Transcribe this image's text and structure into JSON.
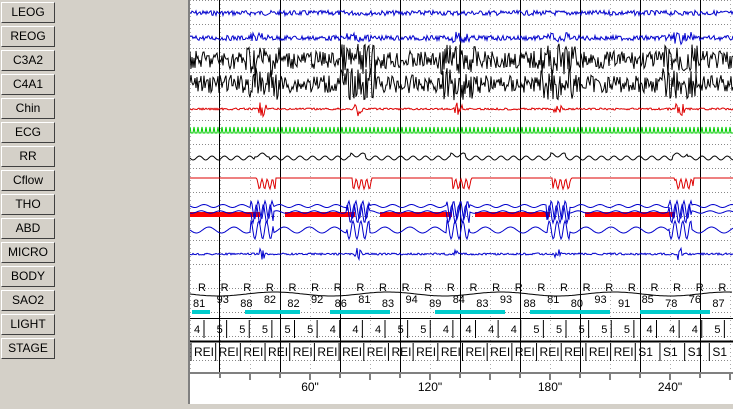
{
  "channels": [
    {
      "label": "LEOG",
      "color": "#0000cc"
    },
    {
      "label": "REOG",
      "color": "#0000cc"
    },
    {
      "label": "C3A2",
      "color": "#000000"
    },
    {
      "label": "C4A1",
      "color": "#000000"
    },
    {
      "label": "Chin",
      "color": "#dd0000"
    },
    {
      "label": "ECG",
      "color": "#00cc00"
    },
    {
      "label": "RR",
      "color": "#000000"
    },
    {
      "label": "Cflow",
      "color": "#dd0000"
    },
    {
      "label": "THO",
      "color": "#0000cc"
    },
    {
      "label": "ABD",
      "color": "#0000cc"
    },
    {
      "label": "MICRO",
      "color": "#0000cc"
    },
    {
      "label": "BODY",
      "color": "#000000"
    },
    {
      "label": "SAO2",
      "color": "#000000"
    },
    {
      "label": "LIGHT",
      "color": "#000000"
    },
    {
      "label": "STAGE",
      "color": "#000000"
    }
  ],
  "body_marks": [
    "R",
    "R",
    "R",
    "R",
    "R",
    "R",
    "R",
    "R",
    "R",
    "R",
    "R",
    "R",
    "R",
    "R",
    "R",
    "R",
    "R",
    "R",
    "R",
    "R",
    "R",
    "R",
    "R",
    "R"
  ],
  "sao2_values": [
    "81",
    "93",
    "88",
    "82",
    "82",
    "92",
    "86",
    "81",
    "83",
    "94",
    "89",
    "84",
    "83",
    "93",
    "88",
    "81",
    "80",
    "93",
    "91",
    "85",
    "78",
    "76",
    "87"
  ],
  "light_values": [
    "4",
    "5",
    "5",
    "5",
    "5",
    "5",
    "4",
    "4",
    "4",
    "5",
    "5",
    "4",
    "4",
    "4",
    "4",
    "5",
    "5",
    "5",
    "5",
    "5",
    "4",
    "4",
    "4",
    "5"
  ],
  "stage_values": [
    "REI",
    "REI",
    "REI",
    "REI",
    "REI",
    "REI",
    "REI",
    "REI",
    "REI",
    "REI",
    "REI",
    "REI",
    "REI",
    "REI",
    "REI",
    "REI",
    "REI",
    "REI",
    "S1",
    "S1",
    "S1",
    "S1"
  ],
  "time_axis": {
    "ticks": [
      "60\"",
      "120\"",
      "180\"",
      "240\""
    ]
  },
  "colors": {
    "eeg": "#000000",
    "eog": "#0000cc",
    "ecg": "#00cc00",
    "flow": "#dd0000",
    "sao2_bar": "#00cccc",
    "desat_bar": "#ff0000"
  }
}
